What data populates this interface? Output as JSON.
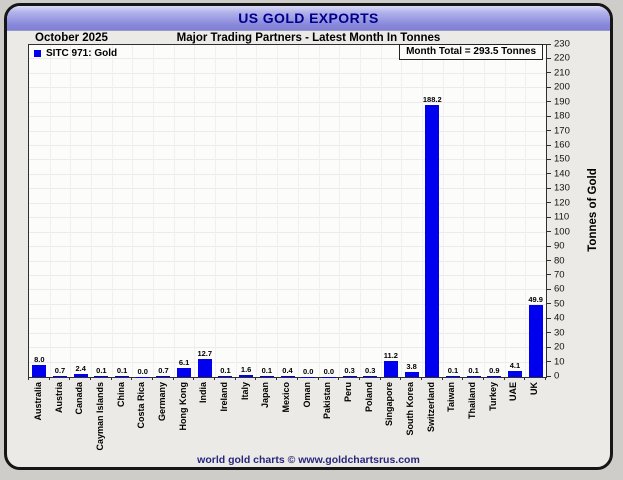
{
  "banner": {
    "title": "US GOLD EXPORTS"
  },
  "header": {
    "date_label": "October 2025",
    "subtitle": "Major Trading Partners - Latest Month In Tonnes"
  },
  "legend": {
    "label": "SITC 971: Gold"
  },
  "annotation": {
    "month_total_label": "Month Total = 293.5 Tonnes"
  },
  "footer": {
    "credit": "world gold charts © www.goldchartsrus.com"
  },
  "colors": {
    "bar": "#0000ee",
    "banner_text": "#00008c",
    "footer_text": "#26267e",
    "grid": "#ebebee",
    "axis": "#2f2f2f"
  },
  "chart_data": {
    "type": "bar",
    "title": "US GOLD EXPORTS",
    "subtitle": "Major Trading Partners - Latest Month In Tonnes",
    "series_name": "SITC 971: Gold",
    "month_total_tonnes": 293.5,
    "categories": [
      "Australia",
      "Austria",
      "Canada",
      "Cayman Islands",
      "China",
      "Costa Rica",
      "Germany",
      "Hong Kong",
      "India",
      "Ireland",
      "Italy",
      "Japan",
      "Mexico",
      "Oman",
      "Pakistan",
      "Peru",
      "Poland",
      "Singapore",
      "South Korea",
      "Switzerland",
      "Taiwan",
      "Thailand",
      "Turkey",
      "UAE",
      "UK"
    ],
    "values": [
      8.0,
      0.7,
      2.4,
      0.1,
      0.1,
      0.0,
      0.7,
      6.1,
      12.7,
      0.1,
      1.6,
      0.1,
      0.4,
      0.0,
      0.0,
      0.3,
      0.3,
      11.2,
      3.8,
      188.2,
      0.1,
      0.1,
      0.9,
      4.1,
      49.9
    ],
    "xlabel": "",
    "ylabel": "Tonnes of Gold",
    "ylim": [
      0,
      230
    ],
    "ytick_step": 10,
    "grid": true,
    "legend_position": "top-left",
    "value_labels": true
  }
}
